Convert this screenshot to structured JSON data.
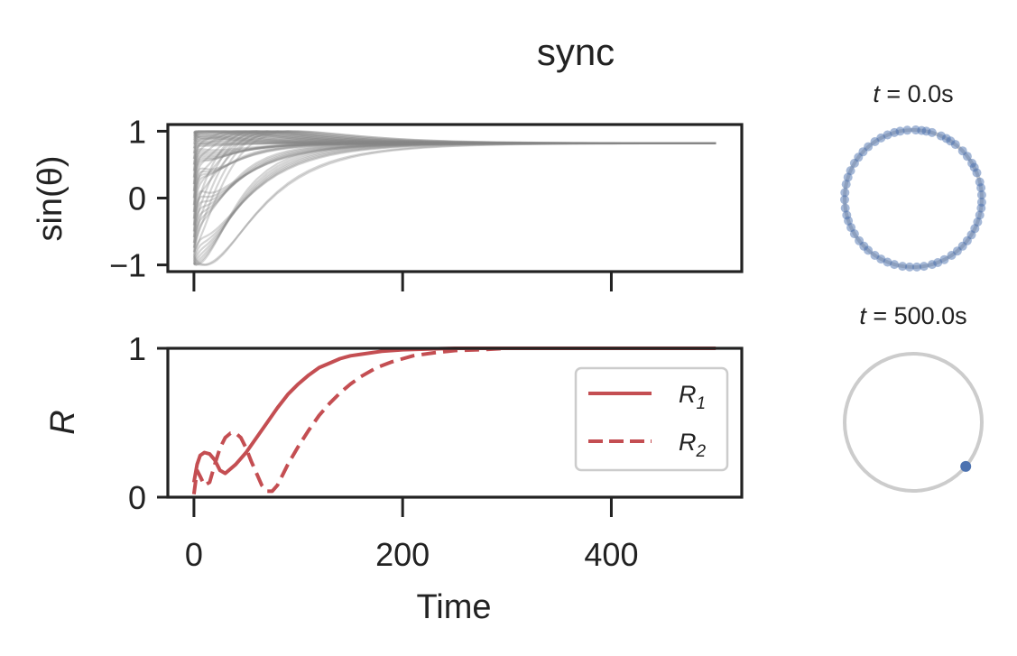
{
  "figure": {
    "title": "sync",
    "xlabel": "Time"
  },
  "chart_data": [
    {
      "type": "line",
      "panel": "phase-traces",
      "ylabel": "sin(θ)",
      "xlim": [
        -25,
        525
      ],
      "ylim": [
        -1.1,
        1.1
      ],
      "x_ticks": [
        0,
        200,
        400
      ],
      "y_ticks": [
        1,
        0,
        -1
      ],
      "y_tick_labels": [
        "1",
        "0",
        "−1"
      ],
      "trace_count": 60,
      "final_value": 0.82,
      "color": "#888888",
      "grid": false
    },
    {
      "type": "line",
      "panel": "order-parameter",
      "ylabel": "R",
      "xlim": [
        -25,
        525
      ],
      "ylim": [
        0,
        1
      ],
      "x_ticks": [
        0,
        200,
        400
      ],
      "x_tick_labels": [
        "0",
        "200",
        "400"
      ],
      "y_ticks": [
        1,
        0
      ],
      "y_tick_labels": [
        "1",
        "0"
      ],
      "legend": {
        "placement": "right",
        "entries": [
          "R1",
          "R2"
        ]
      },
      "series": [
        {
          "name": "R1",
          "style": "solid",
          "color": "#c44e52",
          "x": [
            0,
            3,
            6,
            10,
            15,
            20,
            25,
            30,
            40,
            50,
            60,
            70,
            80,
            90,
            100,
            110,
            120,
            130,
            140,
            150,
            160,
            180,
            200,
            225,
            250,
            300,
            350,
            400,
            450,
            500
          ],
          "y": [
            0.1,
            0.22,
            0.28,
            0.3,
            0.29,
            0.25,
            0.18,
            0.16,
            0.22,
            0.3,
            0.4,
            0.5,
            0.6,
            0.69,
            0.76,
            0.82,
            0.87,
            0.9,
            0.93,
            0.95,
            0.96,
            0.98,
            0.99,
            0.995,
            1.0,
            1.0,
            1.0,
            1.0,
            1.0,
            1.0
          ]
        },
        {
          "name": "R2",
          "style": "dashed",
          "color": "#c44e52",
          "x": [
            0,
            3,
            6,
            10,
            15,
            20,
            25,
            30,
            35,
            40,
            45,
            50,
            55,
            60,
            65,
            70,
            75,
            80,
            85,
            90,
            100,
            110,
            120,
            130,
            140,
            150,
            160,
            175,
            190,
            210,
            230,
            250,
            275,
            300,
            350,
            400,
            450,
            500
          ],
          "y": [
            0.02,
            0.18,
            0.14,
            0.08,
            0.1,
            0.22,
            0.33,
            0.4,
            0.43,
            0.43,
            0.4,
            0.33,
            0.24,
            0.16,
            0.08,
            0.04,
            0.04,
            0.08,
            0.15,
            0.22,
            0.34,
            0.45,
            0.55,
            0.63,
            0.7,
            0.76,
            0.81,
            0.87,
            0.91,
            0.95,
            0.97,
            0.985,
            0.99,
            1.0,
            1.0,
            1.0,
            1.0,
            1.0
          ]
        }
      ],
      "grid": false
    },
    {
      "type": "scatter",
      "panel": "phases-start",
      "title_var": "t",
      "title_value": "0.0s",
      "point_color": "#4c72b0",
      "ring_color": "#cccccc",
      "phases_deg": [
        3,
        9,
        14,
        22,
        27,
        31,
        38,
        44,
        52,
        57,
        61,
        66,
        74,
        79,
        83,
        88,
        95,
        101,
        106,
        112,
        118,
        124,
        131,
        137,
        143,
        149,
        156,
        162,
        168,
        175,
        181,
        188,
        194,
        199,
        205,
        211,
        218,
        224,
        229,
        236,
        242,
        248,
        254,
        261,
        267,
        273,
        279,
        286,
        291,
        297,
        304,
        310,
        316,
        322,
        328,
        334,
        340,
        346,
        352,
        357
      ]
    },
    {
      "type": "scatter",
      "panel": "phases-end",
      "title_var": "t",
      "title_value": "500.0s",
      "point_color": "#4c72b0",
      "ring_color": "#cccccc",
      "phases_deg": [
        -40
      ]
    }
  ]
}
